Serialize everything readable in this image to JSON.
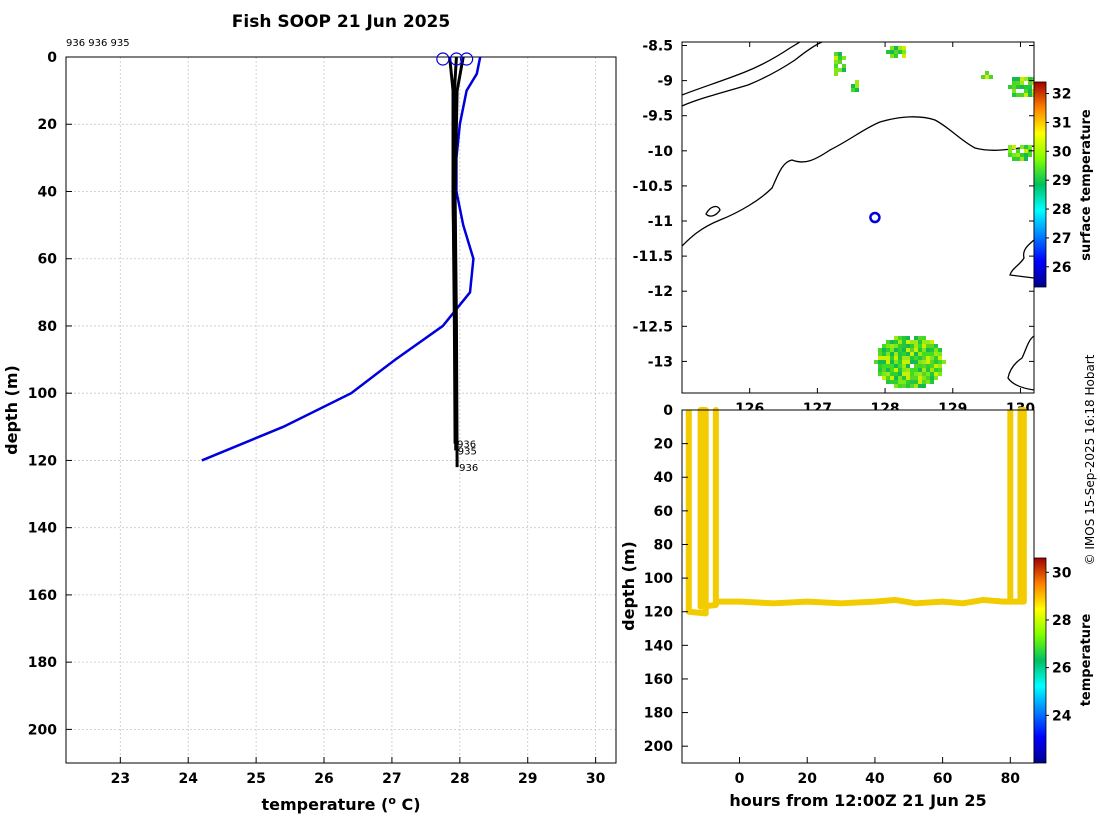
{
  "credit": "© IMOS 15-Sep-2025 16:18 Hobart",
  "chart_data": [
    {
      "type": "line",
      "title": "Fish SOOP 21 Jun 2025",
      "top_note": "936 936 935",
      "xlabel": "temperature (",
      "xlabel_sup": "o",
      "xlabel_tail": " C)",
      "ylabel": "depth (m)",
      "xlim": [
        22.2,
        30.3
      ],
      "ylim": [
        210,
        0
      ],
      "xticks": [
        "23",
        "24",
        "25",
        "26",
        "27",
        "28",
        "29",
        "30"
      ],
      "yticks": [
        "0",
        "20",
        "40",
        "60",
        "80",
        "100",
        "120",
        "140",
        "160",
        "180",
        "200"
      ],
      "grid": true,
      "reference_profile": {
        "color": "#0000dd",
        "points": [
          [
            28.3,
            0
          ],
          [
            28.25,
            5
          ],
          [
            28.1,
            10
          ],
          [
            28.0,
            20
          ],
          [
            27.95,
            30
          ],
          [
            27.95,
            40
          ],
          [
            28.05,
            50
          ],
          [
            28.2,
            60
          ],
          [
            28.15,
            70
          ],
          [
            27.75,
            80
          ],
          [
            27.05,
            90
          ],
          [
            26.4,
            100
          ],
          [
            25.4,
            110
          ],
          [
            24.2,
            120
          ]
        ]
      },
      "instrument_profiles": [
        {
          "label": "936",
          "color": "#000000",
          "points": [
            [
              27.85,
              0
            ],
            [
              27.9,
              10
            ],
            [
              27.9,
              40
            ],
            [
              27.92,
              80
            ],
            [
              27.93,
              115
            ]
          ]
        },
        {
          "label": "935",
          "color": "#000000",
          "points": [
            [
              27.95,
              0
            ],
            [
              27.92,
              10
            ],
            [
              27.9,
              40
            ],
            [
              27.93,
              80
            ],
            [
              27.94,
              117
            ]
          ]
        },
        {
          "label": "936",
          "color": "#000000",
          "points": [
            [
              28.05,
              0
            ],
            [
              27.96,
              10
            ],
            [
              27.93,
              40
            ],
            [
              27.95,
              80
            ],
            [
              27.96,
              122
            ]
          ]
        }
      ],
      "surface_markers": [
        27.75,
        27.95,
        28.1
      ]
    },
    {
      "type": "heatmap",
      "yticks": [
        "-8.5",
        "-9",
        "-9.5",
        "-10",
        "-10.5",
        "-11",
        "-11.5",
        "-12",
        "-12.5",
        "-13"
      ],
      "ylim": [
        -13.45,
        -8.45
      ],
      "xticks": [
        "126",
        "127",
        "128",
        "129",
        "130"
      ],
      "xlim": [
        125.0,
        130.2
      ],
      "marker": {
        "lon": 127.85,
        "lat": -10.95,
        "color": "#0000dd"
      },
      "colorbar": {
        "label": "surface temperature",
        "ticks": [
          "26",
          "27",
          "28",
          "29",
          "30",
          "31",
          "32"
        ],
        "range": [
          25.3,
          32.4
        ]
      }
    },
    {
      "type": "line",
      "xlabel": "hours from 12:00Z 21 Jun 25",
      "ylabel": "depth (m)",
      "xlim": [
        -17,
        87
      ],
      "ylim": [
        210,
        0
      ],
      "xticks": [
        "0",
        "20",
        "40",
        "60",
        "80"
      ],
      "yticks": [
        "0",
        "20",
        "40",
        "60",
        "80",
        "100",
        "120",
        "140",
        "160",
        "180",
        "200"
      ],
      "series_color": "#f2cc00",
      "track": [
        [
          -15,
          0
        ],
        [
          -15,
          120
        ],
        [
          -10,
          121
        ],
        [
          -10,
          0
        ],
        [
          -11.5,
          0
        ],
        [
          -11.5,
          117
        ],
        [
          -7,
          116
        ],
        [
          -7,
          0
        ],
        [
          -7,
          114
        ],
        [
          0,
          114
        ],
        [
          10,
          115
        ],
        [
          20,
          114
        ],
        [
          30,
          115
        ],
        [
          40,
          114
        ],
        [
          46,
          113
        ],
        [
          52,
          115
        ],
        [
          60,
          114
        ],
        [
          66,
          115
        ],
        [
          72,
          113
        ],
        [
          78,
          114
        ],
        [
          84,
          114
        ],
        [
          84,
          0
        ],
        [
          83,
          0
        ],
        [
          83,
          114
        ],
        [
          80,
          114
        ],
        [
          80,
          0
        ]
      ],
      "colorbar": {
        "label": "temperature",
        "ticks": [
          "24",
          "26",
          "28",
          "30"
        ],
        "range": [
          22.0,
          30.6
        ]
      }
    }
  ]
}
